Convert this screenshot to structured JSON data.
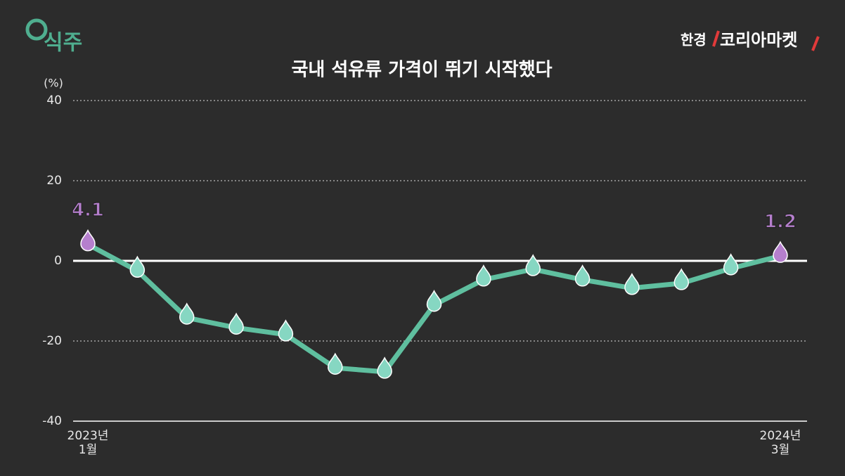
{
  "logo_left": "식주",
  "logo_right": {
    "brand": "한경",
    "name": "코리아마켓"
  },
  "chart_data": {
    "type": "line",
    "title": "국내 석유류 가격이 뛰기 시작했다",
    "y_label": "(%)",
    "categories": [
      "2023년\n1월",
      null,
      null,
      null,
      null,
      null,
      null,
      null,
      null,
      null,
      null,
      null,
      null,
      null,
      "2024년\n3월"
    ],
    "series": [
      {
        "color": "#5fbf9f",
        "values": [
          4.1,
          -2.5,
          -14.2,
          -16.7,
          -18.4,
          -26.7,
          -27.7,
          -11.0,
          -4.7,
          -2.1,
          -4.7,
          -6.8,
          -5.6,
          -1.9,
          1.2
        ],
        "value_labels": [
          "4.1",
          null,
          null,
          null,
          null,
          null,
          null,
          null,
          null,
          null,
          null,
          null,
          null,
          null,
          "1.2"
        ]
      }
    ],
    "marker_color": "#86d7c2",
    "highlight_color": "#b57fcd",
    "ylim": [
      -40,
      40
    ],
    "yticks": [
      -40,
      -20,
      0,
      20,
      40
    ],
    "grid": true
  }
}
